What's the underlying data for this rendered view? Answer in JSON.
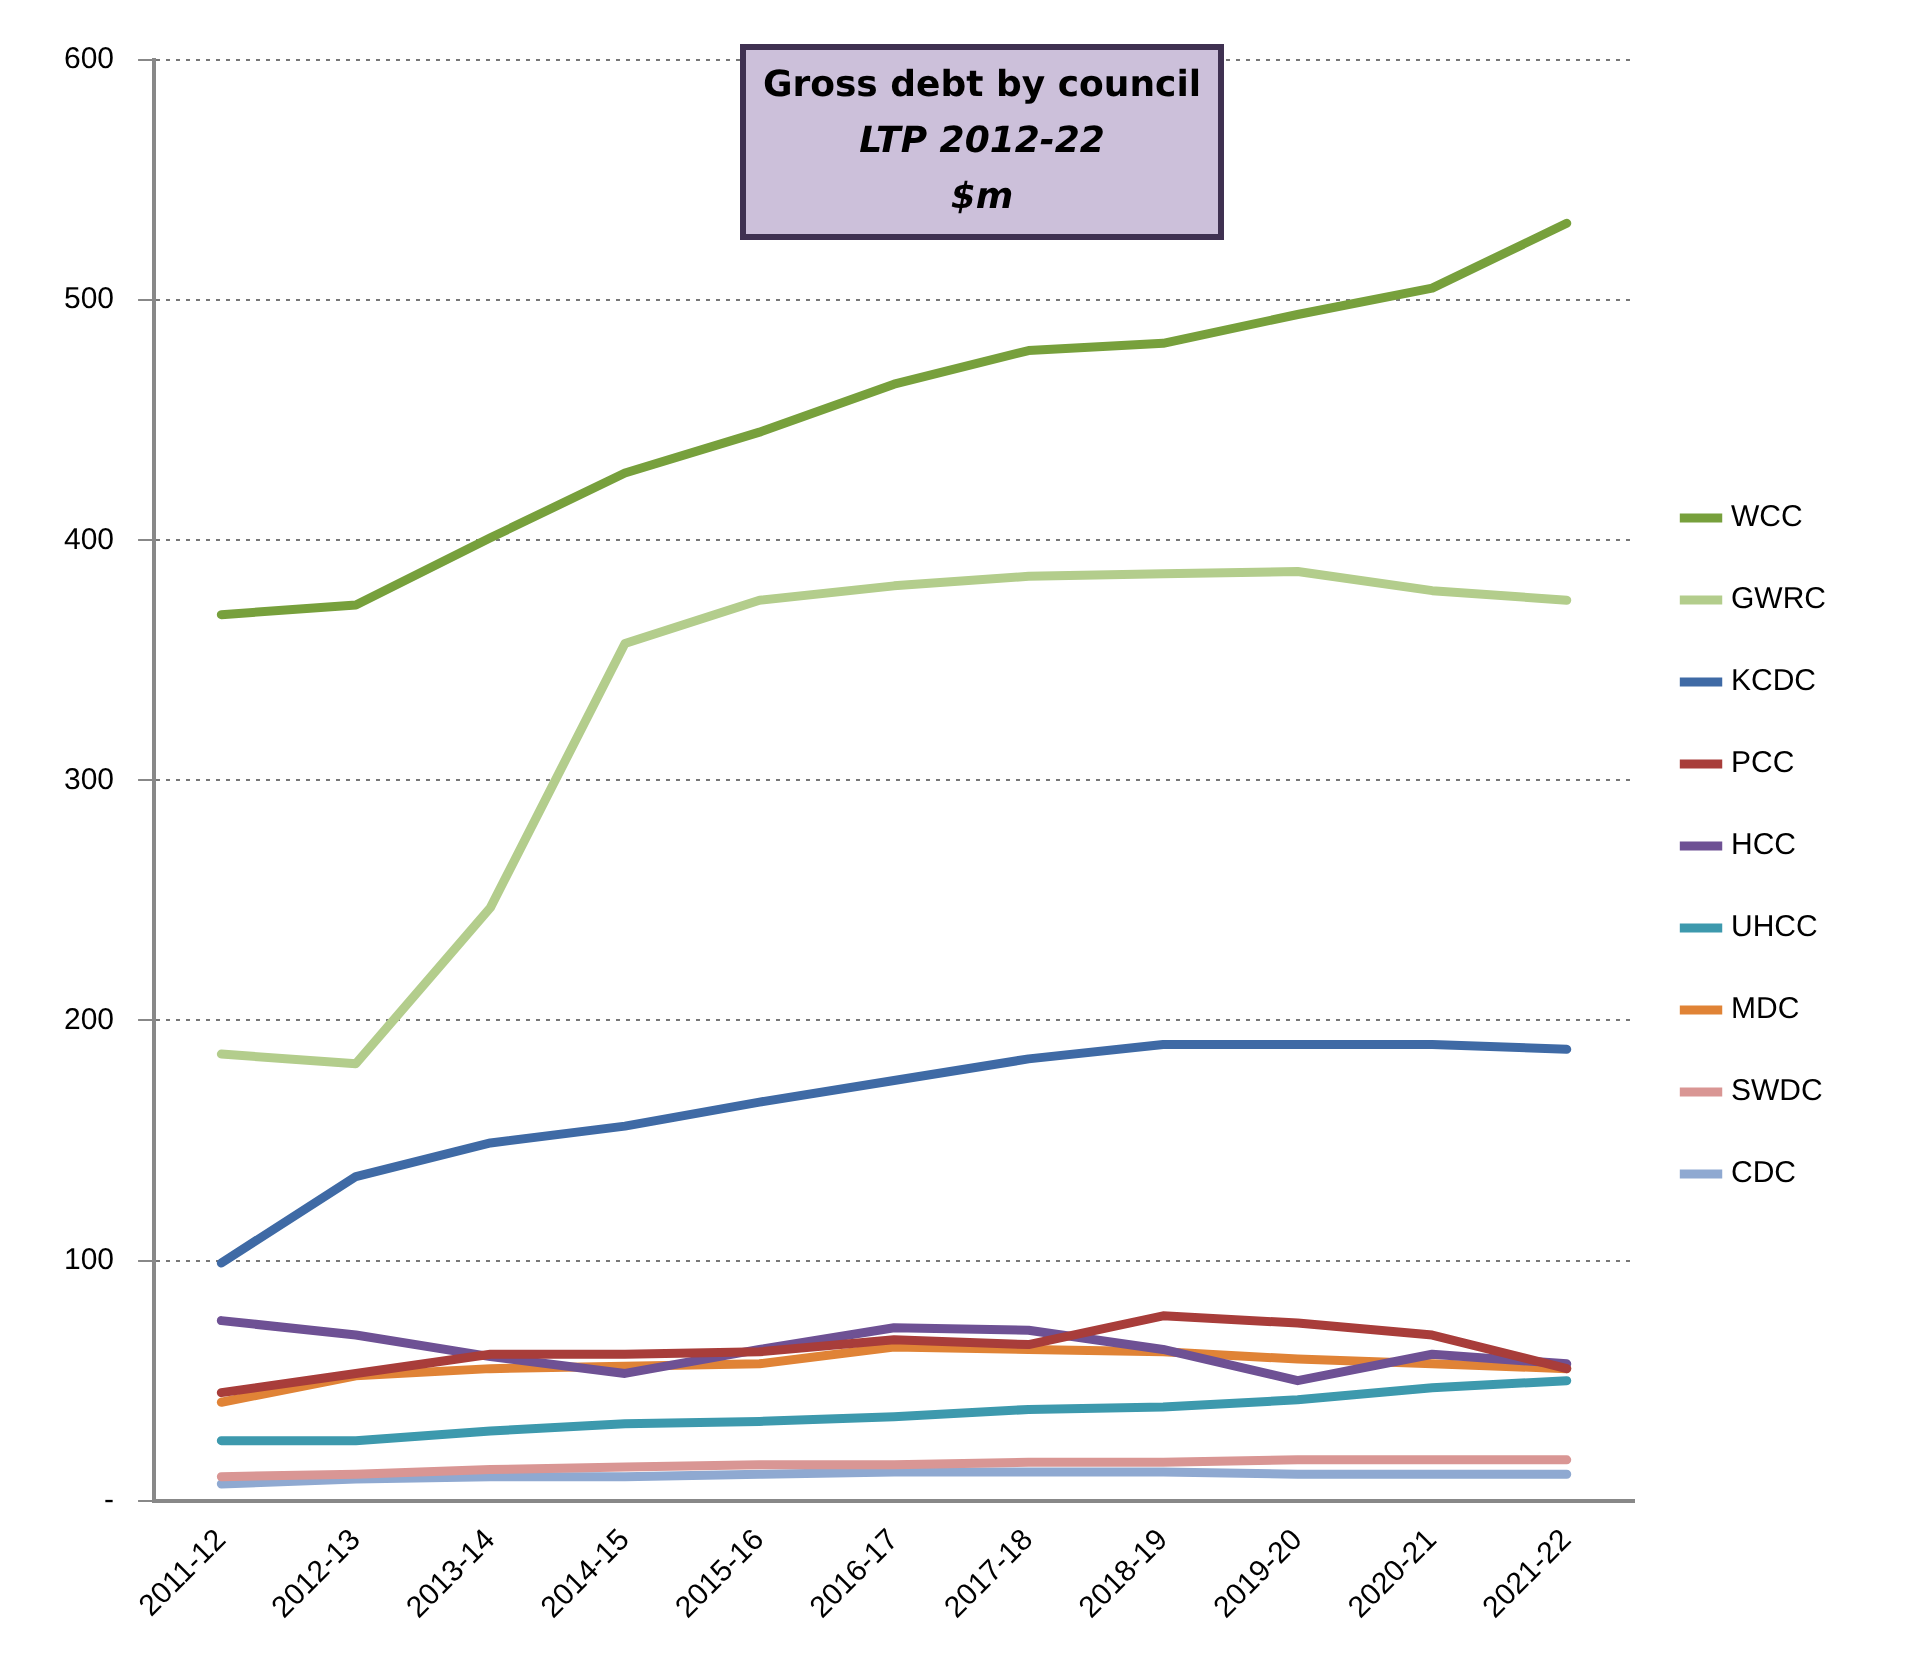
{
  "chart_data": {
    "type": "line",
    "title": "Gross debt by council",
    "subtitle": "LTP 2012-22",
    "annotations": [
      "$m"
    ],
    "categories": [
      "2011-12",
      "2012-13",
      "2013-14",
      "2014-15",
      "2015-16",
      "2016-17",
      "2017-18",
      "2018-19",
      "2019-20",
      "2020-21",
      "2021-22"
    ],
    "series": [
      {
        "name": "WCC",
        "color": "#77a03c",
        "values": [
          369,
          373,
          401,
          428,
          445,
          465,
          479,
          482,
          494,
          505,
          532
        ]
      },
      {
        "name": "GWRC",
        "color": "#b3cd8c",
        "values": [
          186,
          182,
          247,
          357,
          375,
          381,
          385,
          386,
          387,
          379,
          375
        ]
      },
      {
        "name": "KCDC",
        "color": "#3f6aa5",
        "values": [
          99,
          135,
          149,
          156,
          166,
          175,
          184,
          190,
          190,
          190,
          188
        ]
      },
      {
        "name": "PCC",
        "color": "#a83d3a",
        "values": [
          45,
          53,
          61,
          61,
          62,
          67,
          65,
          77,
          74,
          69,
          55
        ]
      },
      {
        "name": "HCC",
        "color": "#6e5194",
        "values": [
          75,
          69,
          60,
          53,
          63,
          72,
          71,
          63,
          50,
          61,
          57
        ]
      },
      {
        "name": "UHCC",
        "color": "#3d99ad",
        "values": [
          25,
          25,
          29,
          32,
          33,
          35,
          38,
          39,
          42,
          47,
          50
        ]
      },
      {
        "name": "MDC",
        "color": "#e08336",
        "values": [
          41,
          52,
          55,
          56,
          57,
          64,
          63,
          62,
          59,
          57,
          55
        ]
      },
      {
        "name": "SWDC",
        "color": "#d99694",
        "values": [
          10,
          11,
          13,
          14,
          15,
          15,
          16,
          16,
          17,
          17,
          17
        ]
      },
      {
        "name": "CDC",
        "color": "#8fa9d1",
        "values": [
          7,
          9,
          10,
          10,
          11,
          12,
          12,
          12,
          11,
          11,
          11
        ]
      }
    ],
    "ylim": [
      0,
      600
    ],
    "yticks": [
      {
        "value": 0,
        "label": "-"
      },
      100,
      200,
      300,
      400,
      500,
      600
    ],
    "grid": "y",
    "legend": "right",
    "marker": "none",
    "line_style": "solid"
  }
}
